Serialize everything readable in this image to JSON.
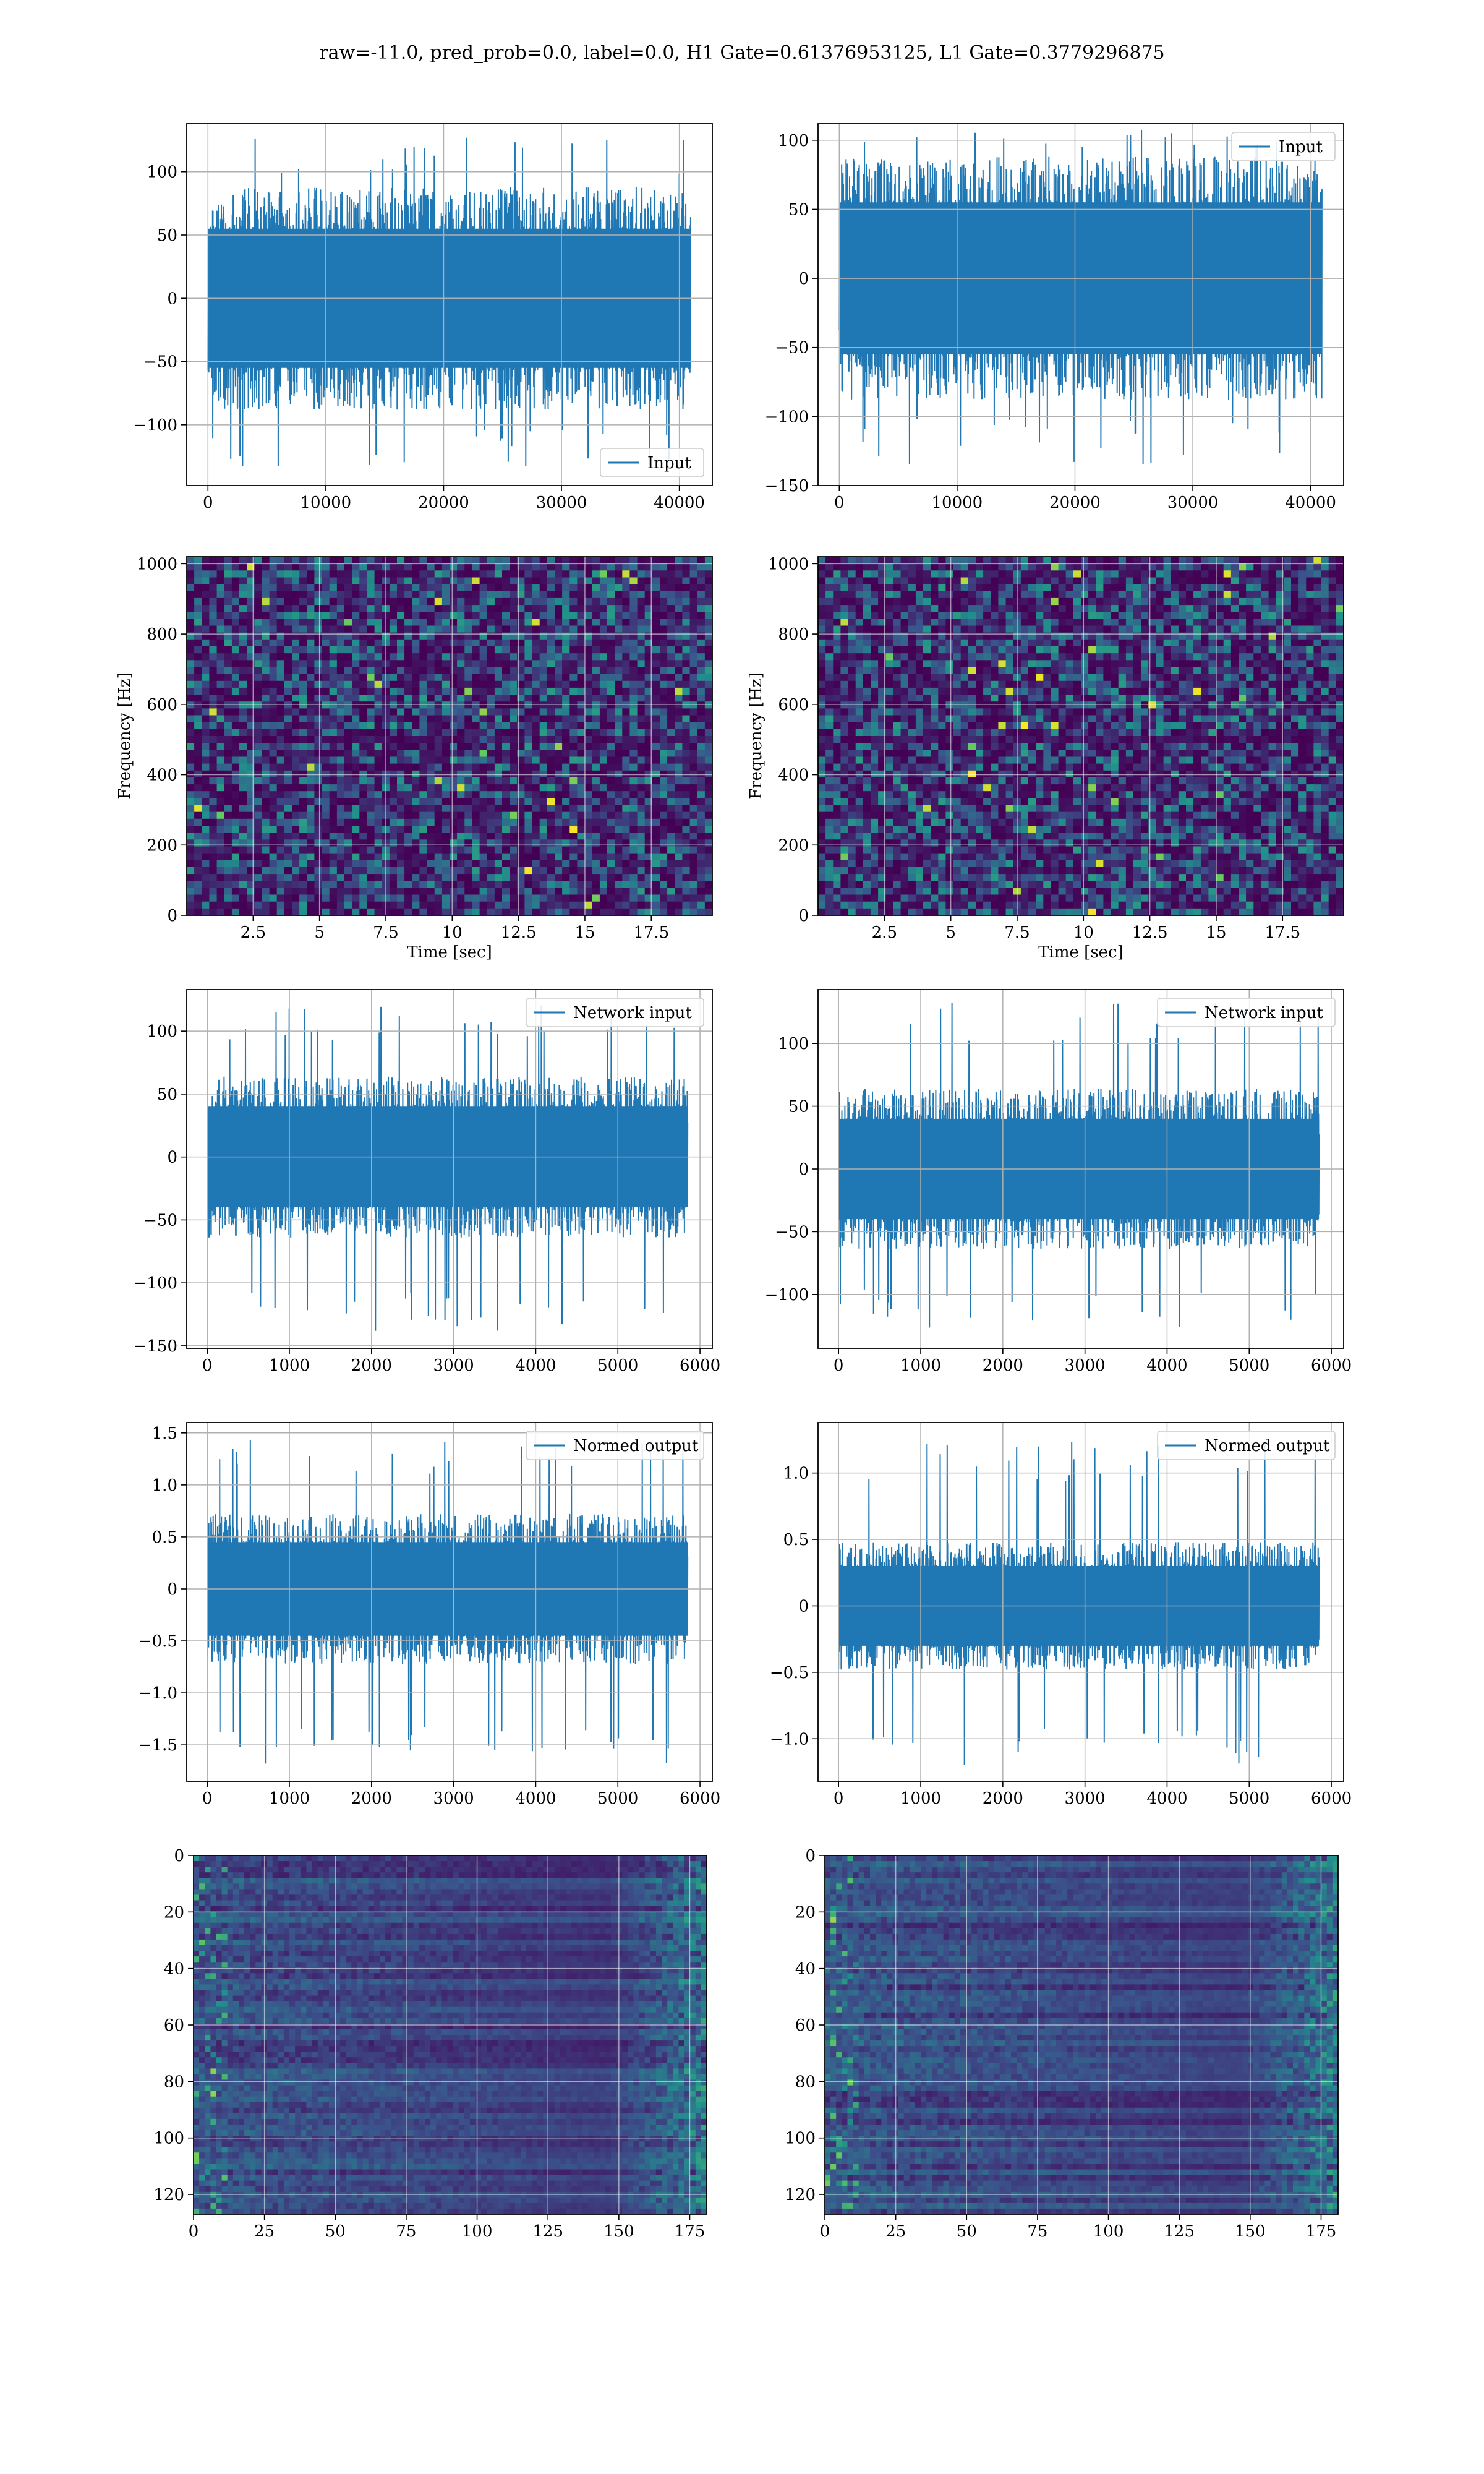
{
  "figure": {
    "title": "raw=-11.0, pred_prob=0.0, label=0.0, H1 Gate=0.61376953125, L1 Gate=0.3779296875"
  },
  "chart_data": [
    {
      "type": "line",
      "panel": "input-h1",
      "series": [
        {
          "name": "Input",
          "color": "#1f77b4"
        }
      ],
      "legend": "lower right",
      "xlim": [
        -1800,
        42800
      ],
      "ylim": [
        -148,
        138
      ],
      "xticks": [
        0,
        10000,
        20000,
        30000,
        40000
      ],
      "yticks": [
        -100,
        -50,
        0,
        50,
        100
      ],
      "x_range": [
        0,
        40959
      ],
      "band": [
        -55,
        55
      ],
      "peak_range": [
        -135,
        130
      ],
      "grid": true
    },
    {
      "type": "line",
      "panel": "input-l1",
      "series": [
        {
          "name": "Input",
          "color": "#1f77b4"
        }
      ],
      "legend": "upper right",
      "xlim": [
        -1800,
        42800
      ],
      "ylim": [
        -150,
        112
      ],
      "xticks": [
        0,
        10000,
        20000,
        30000,
        40000
      ],
      "yticks": [
        -150,
        -100,
        -50,
        0,
        50,
        100
      ],
      "x_range": [
        0,
        40959
      ],
      "band": [
        -55,
        55
      ],
      "peak_range": [
        -135,
        108
      ],
      "grid": true
    },
    {
      "type": "heatmap",
      "panel": "spectrogram-h1",
      "xlabel": "Time [sec]",
      "ylabel": "Frequency [Hz]",
      "xlim": [
        0,
        19.8
      ],
      "ylim": [
        0,
        1020
      ],
      "xticks": [
        2.5,
        5.0,
        7.5,
        10.0,
        12.5,
        15.0,
        17.5
      ],
      "yticks": [
        0,
        200,
        400,
        600,
        800,
        1000
      ],
      "colormap": "viridis",
      "grid": true
    },
    {
      "type": "heatmap",
      "panel": "spectrogram-l1",
      "xlabel": "Time [sec]",
      "ylabel": "Frequency [Hz]",
      "xlim": [
        0,
        19.8
      ],
      "ylim": [
        0,
        1020
      ],
      "xticks": [
        2.5,
        5.0,
        7.5,
        10.0,
        12.5,
        15.0,
        17.5
      ],
      "yticks": [
        0,
        200,
        400,
        600,
        800,
        1000
      ],
      "colormap": "viridis",
      "grid": true
    },
    {
      "type": "line",
      "panel": "network-input-h1",
      "series": [
        {
          "name": "Network input",
          "color": "#1f77b4"
        }
      ],
      "legend": "upper right",
      "xlim": [
        -250,
        6150
      ],
      "ylim": [
        -152,
        133
      ],
      "xticks": [
        0,
        1000,
        2000,
        3000,
        4000,
        5000,
        6000
      ],
      "yticks": [
        -150,
        -100,
        -50,
        0,
        50,
        100
      ],
      "x_range": [
        0,
        5850
      ],
      "band": [
        -40,
        40
      ],
      "peak_range": [
        -140,
        122
      ],
      "grid": true
    },
    {
      "type": "line",
      "panel": "network-input-l1",
      "series": [
        {
          "name": "Network input",
          "color": "#1f77b4"
        }
      ],
      "legend": "upper right",
      "xlim": [
        -250,
        6150
      ],
      "ylim": [
        -143,
        143
      ],
      "xticks": [
        0,
        1000,
        2000,
        3000,
        4000,
        5000,
        6000
      ],
      "yticks": [
        -100,
        -50,
        0,
        50,
        100
      ],
      "x_range": [
        0,
        5850
      ],
      "band": [
        -40,
        40
      ],
      "peak_range": [
        -128,
        133
      ],
      "grid": true
    },
    {
      "type": "line",
      "panel": "normed-output-h1",
      "series": [
        {
          "name": "Normed output",
          "color": "#1f77b4"
        }
      ],
      "legend": "upper right",
      "xlim": [
        -250,
        6150
      ],
      "ylim": [
        -1.85,
        1.6
      ],
      "xticks": [
        0,
        1000,
        2000,
        3000,
        4000,
        5000,
        6000
      ],
      "yticks": [
        -1.5,
        -1.0,
        -0.5,
        0.0,
        0.5,
        1.0,
        1.5
      ],
      "x_range": [
        0,
        5850
      ],
      "band": [
        -0.45,
        0.45
      ],
      "peak_range": [
        -1.72,
        1.45
      ],
      "grid": true
    },
    {
      "type": "line",
      "panel": "normed-output-l1",
      "series": [
        {
          "name": "Normed output",
          "color": "#1f77b4"
        }
      ],
      "legend": "upper right",
      "xlim": [
        -250,
        6150
      ],
      "ylim": [
        -1.32,
        1.38
      ],
      "xticks": [
        0,
        1000,
        2000,
        3000,
        4000,
        5000,
        6000
      ],
      "yticks": [
        -1.0,
        -0.5,
        0.0,
        0.5,
        1.0
      ],
      "x_range": [
        0,
        5850
      ],
      "band": [
        -0.3,
        0.3
      ],
      "peak_range": [
        -1.2,
        1.25
      ],
      "grid": true
    },
    {
      "type": "heatmap",
      "panel": "feature-map-h1",
      "xlim": [
        0,
        181
      ],
      "ylim": [
        127,
        0
      ],
      "xticks": [
        0,
        25,
        50,
        75,
        100,
        125,
        150,
        175
      ],
      "yticks": [
        0,
        20,
        40,
        60,
        80,
        100,
        120
      ],
      "colormap": "viridis",
      "grid": true
    },
    {
      "type": "heatmap",
      "panel": "feature-map-l1",
      "xlim": [
        0,
        181
      ],
      "ylim": [
        127,
        0
      ],
      "xticks": [
        0,
        25,
        50,
        75,
        100,
        125,
        150,
        175
      ],
      "yticks": [
        0,
        20,
        40,
        60,
        80,
        100,
        120
      ],
      "colormap": "viridis",
      "grid": true
    }
  ]
}
